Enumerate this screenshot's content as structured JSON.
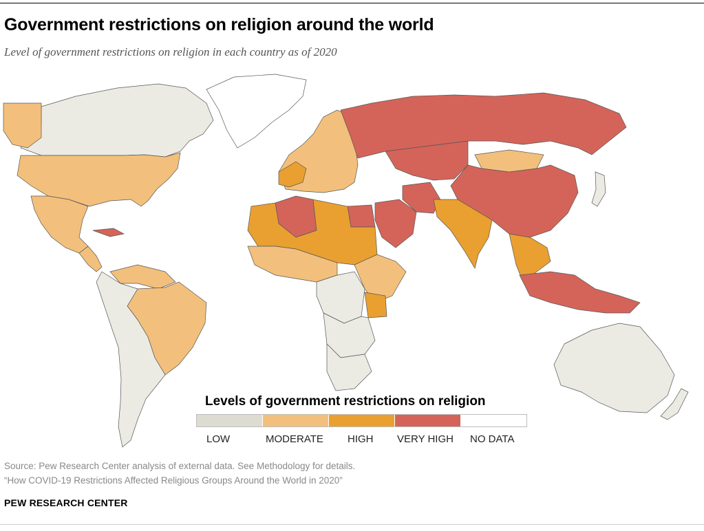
{
  "header": {
    "title": "Government restrictions on religion around the world",
    "subtitle": "Level of government restrictions on religion in each country as of 2020"
  },
  "legend": {
    "title": "Levels of government restrictions on religion",
    "items": [
      {
        "label": "LOW",
        "color": "#ebebe4"
      },
      {
        "label": "MODERATE",
        "color": "#f2c07c"
      },
      {
        "label": "HIGH",
        "color": "#e9a030"
      },
      {
        "label": "VERY HIGH",
        "color": "#d46459"
      },
      {
        "label": "NO DATA",
        "color": "#ffffff"
      }
    ]
  },
  "footer": {
    "source": "Source: Pew Research Center analysis of external data. See Methodology for details.",
    "note": "“How COVID-19 Restrictions Affected Religious Groups Around the World in 2020”",
    "brand": "PEW RESEARCH CENTER"
  },
  "map_regions": [
    {
      "name": "Canada",
      "level": "LOW"
    },
    {
      "name": "Alaska",
      "level": "MODERATE"
    },
    {
      "name": "United States",
      "level": "MODERATE"
    },
    {
      "name": "Mexico",
      "level": "MODERATE"
    },
    {
      "name": "Cuba",
      "level": "VERY HIGH"
    },
    {
      "name": "Central America",
      "level": "MODERATE"
    },
    {
      "name": "Venezuela",
      "level": "MODERATE"
    },
    {
      "name": "Brazil",
      "level": "MODERATE"
    },
    {
      "name": "South America (other)",
      "level": "LOW"
    },
    {
      "name": "Greenland",
      "level": "NO DATA"
    },
    {
      "name": "Europe",
      "level": "MODERATE"
    },
    {
      "name": "Russia",
      "level": "VERY HIGH"
    },
    {
      "name": "China",
      "level": "VERY HIGH"
    },
    {
      "name": "Central Asia",
      "level": "VERY HIGH"
    },
    {
      "name": "Mongolia",
      "level": "MODERATE"
    },
    {
      "name": "Iran",
      "level": "VERY HIGH"
    },
    {
      "name": "Saudi Arabia",
      "level": "VERY HIGH"
    },
    {
      "name": "Egypt",
      "level": "VERY HIGH"
    },
    {
      "name": "Algeria",
      "level": "VERY HIGH"
    },
    {
      "name": "North Africa (other)",
      "level": "HIGH"
    },
    {
      "name": "India",
      "level": "HIGH"
    },
    {
      "name": "Southeast Asia",
      "level": "HIGH"
    },
    {
      "name": "Indonesia",
      "level": "VERY HIGH"
    },
    {
      "name": "West Africa",
      "level": "MODERATE"
    },
    {
      "name": "Central Africa",
      "level": "LOW"
    },
    {
      "name": "East Africa",
      "level": "MODERATE"
    },
    {
      "name": "Tanzania",
      "level": "HIGH"
    },
    {
      "name": "Southern Africa",
      "level": "LOW"
    },
    {
      "name": "Australia",
      "level": "LOW"
    },
    {
      "name": "Japan",
      "level": "LOW"
    }
  ]
}
